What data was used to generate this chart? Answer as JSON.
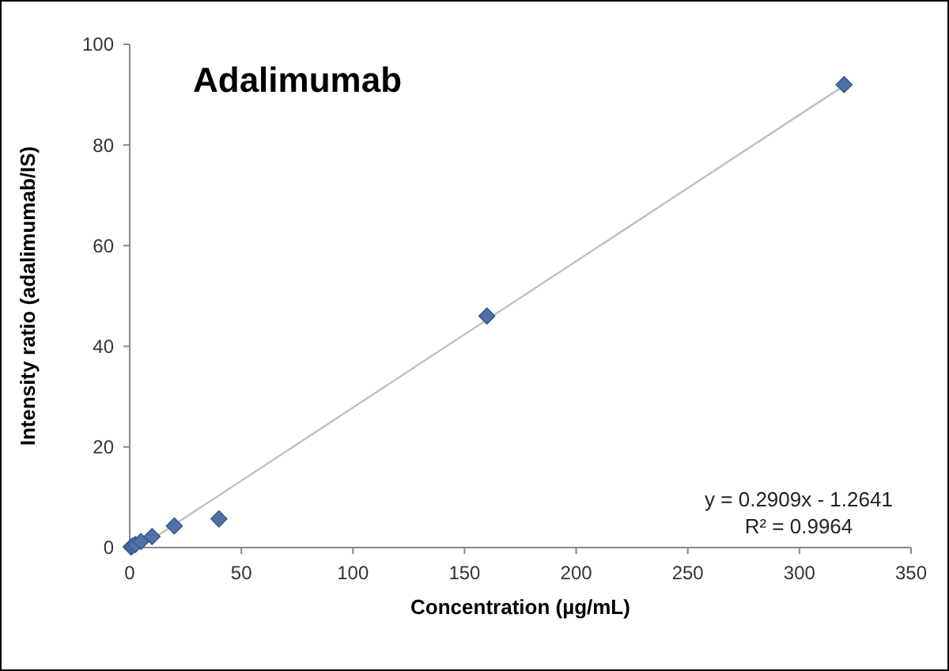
{
  "chart_data": {
    "type": "scatter",
    "title": "Adalimumab",
    "xlabel": "Concentration (µg/mL)",
    "ylabel": "Intensity ratio (adalimumab/IS)",
    "series": [
      {
        "type": "scatter",
        "color": "#4f73a8",
        "x": [
          0.625,
          1.25,
          2.5,
          5,
          10,
          20,
          40,
          160,
          320
        ],
        "values": [
          0.1,
          0.3,
          0.6,
          1.2,
          2.2,
          4.3,
          5.7,
          46,
          92
        ],
        "marker": "diamond"
      },
      {
        "type": "line",
        "color": "#bfbfbf",
        "x": [
          4.35,
          320
        ],
        "values": [
          0,
          91.8
        ]
      }
    ],
    "annotations": [
      "y = 0.2909x - 1.2641",
      "R² = 0.9964"
    ],
    "xlim": [
      0,
      350
    ],
    "xticks": [
      0,
      50,
      100,
      150,
      200,
      250,
      300,
      350
    ],
    "ylim": [
      0,
      100
    ],
    "yticks": [
      0,
      20,
      40,
      60,
      80,
      100
    ],
    "grid": false
  }
}
